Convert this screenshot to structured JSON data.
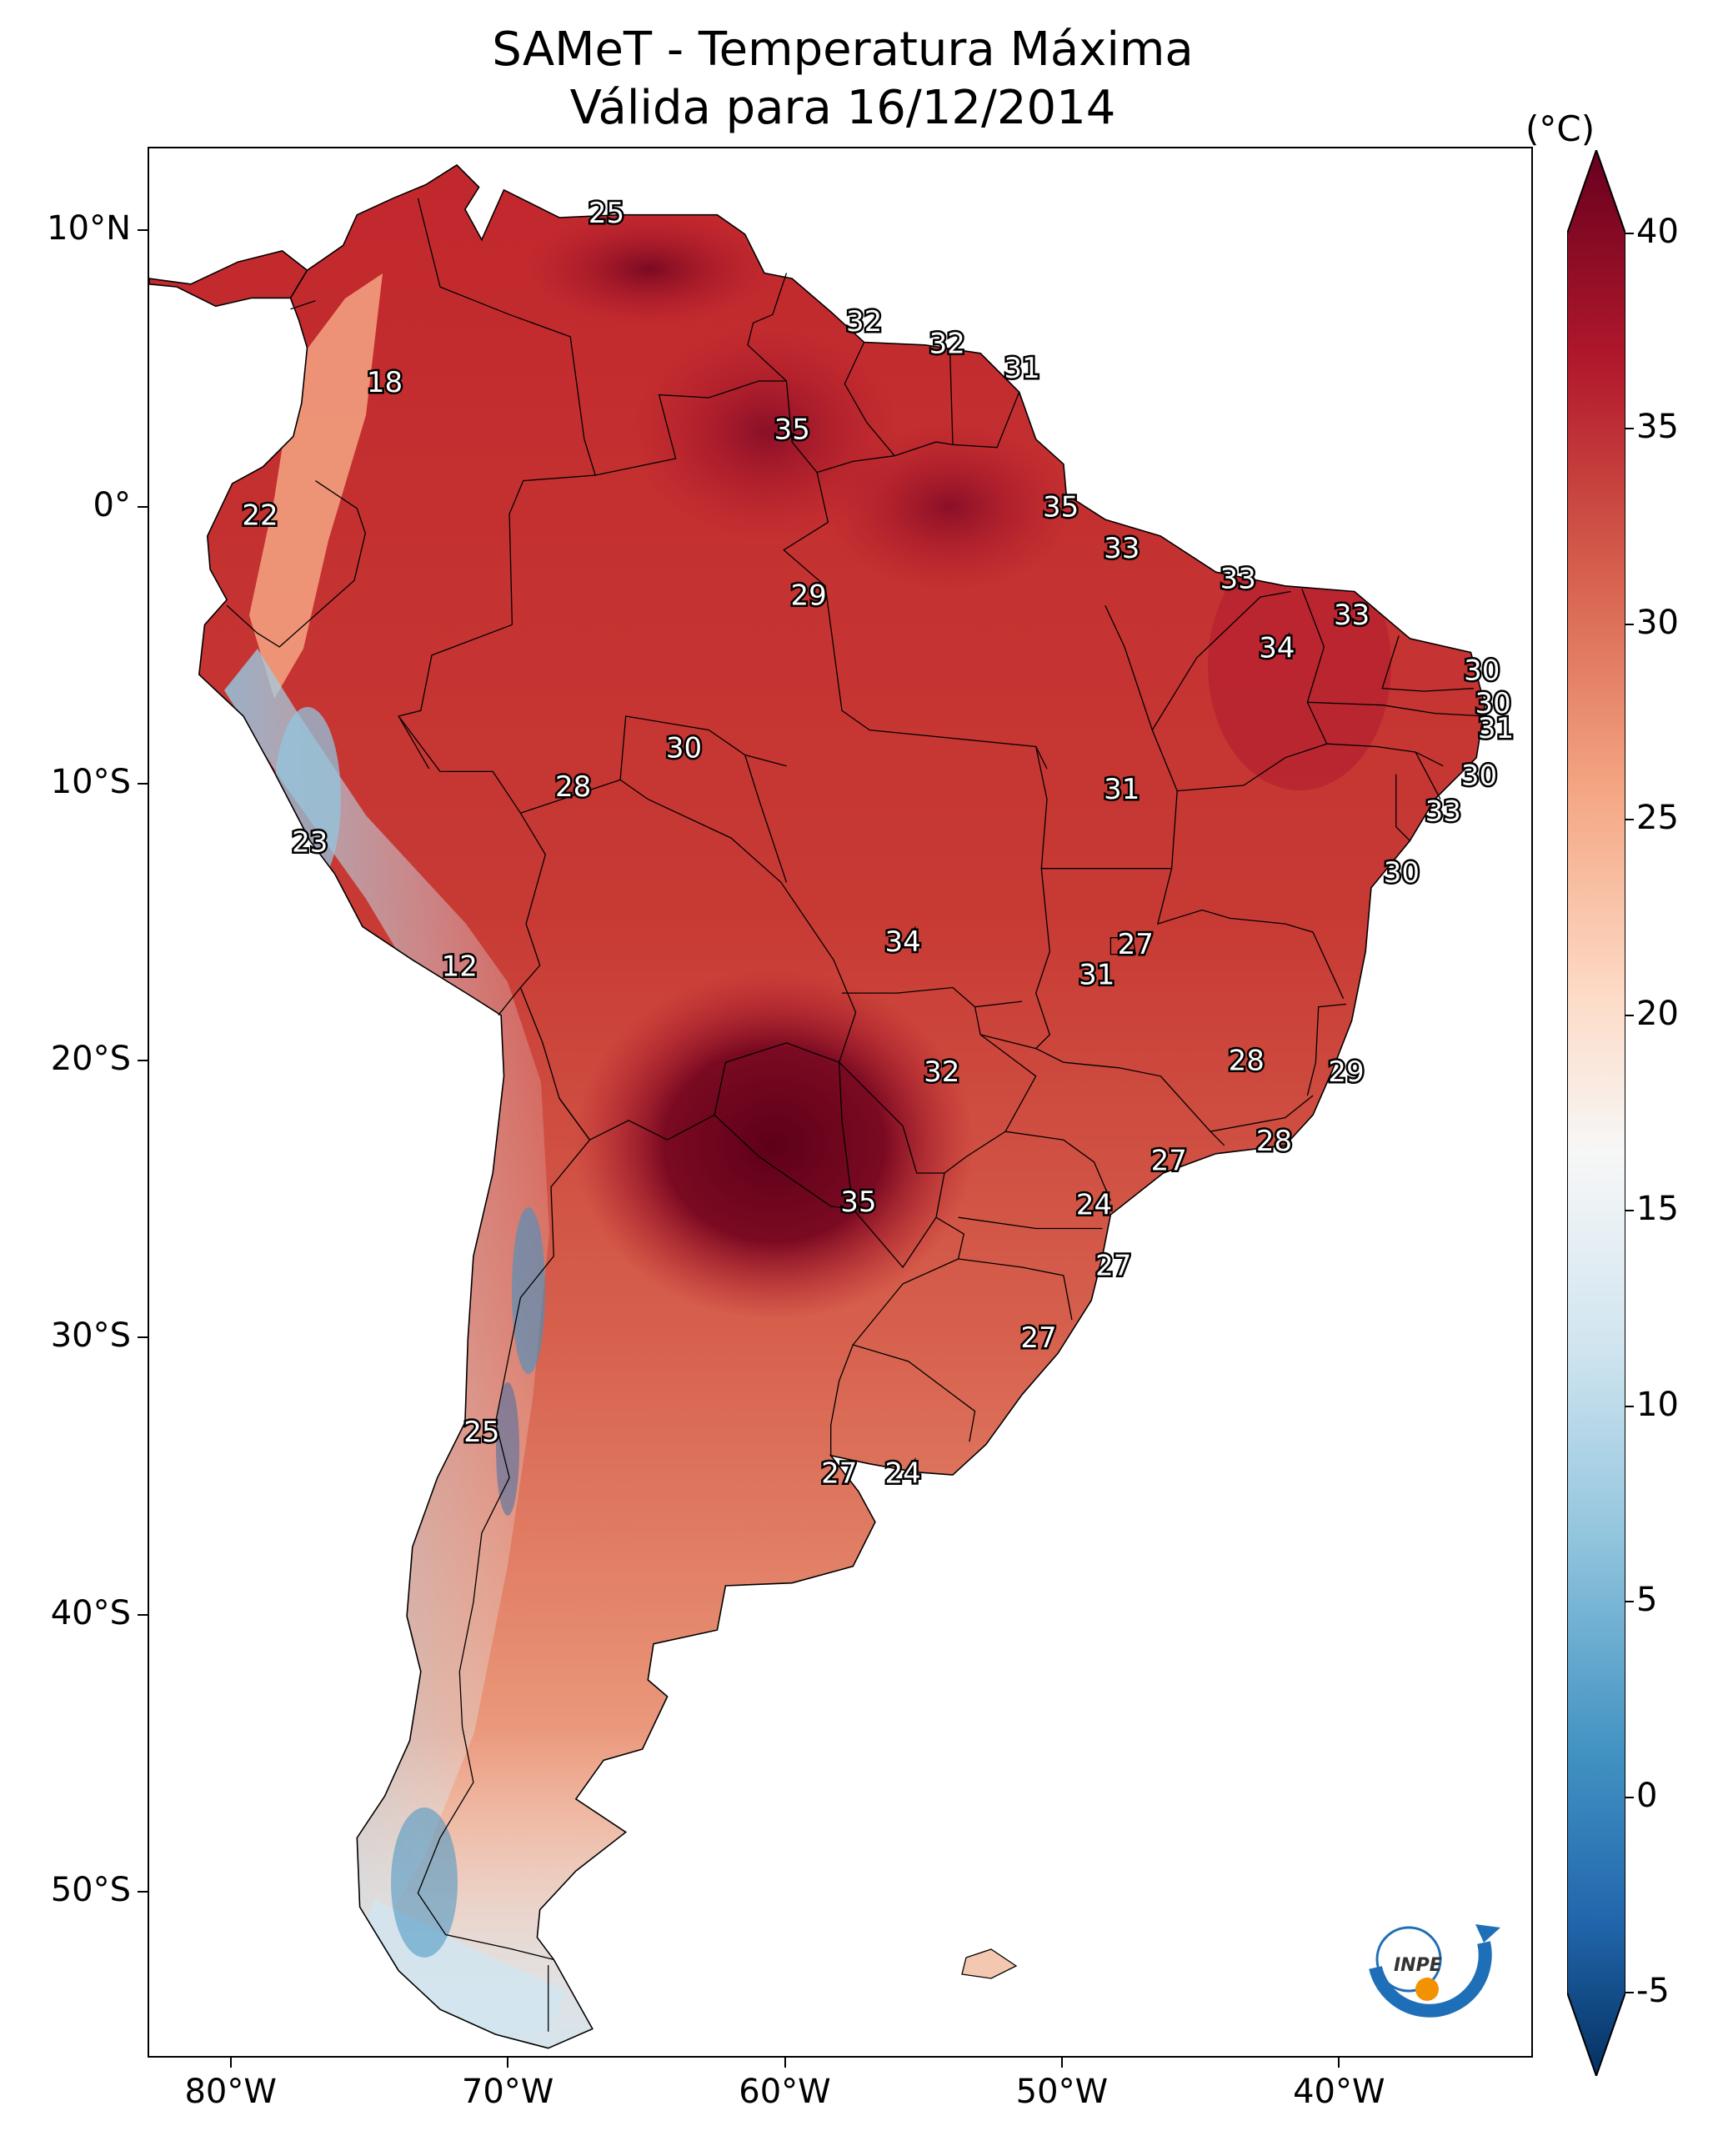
{
  "title": {
    "line1": "SAMeT - Temperatura Máxima",
    "line2": "Válida para 16/12/2014"
  },
  "map": {
    "extent": {
      "lon_min": -83,
      "lon_max": -33,
      "lat_min": -56,
      "lat_max": 13
    },
    "lon_ticks": [
      "80°W",
      "70°W",
      "60°W",
      "50°W",
      "40°W"
    ],
    "lat_ticks": [
      "10°N",
      "0°",
      "10°S",
      "20°S",
      "30°S",
      "40°S",
      "50°S"
    ],
    "colors": {
      "hot_extreme": "#67001f",
      "hot": "#b2182b",
      "warm": "#d6604d",
      "mild": "#f4a582",
      "neutral": "#f7f7f7",
      "cool": "#92c5de",
      "cold": "#2166ac",
      "cold_extreme": "#053061"
    },
    "contour_labels": [
      {
        "text": "25",
        "lon": -66.5,
        "lat": 10.6
      },
      {
        "text": "32",
        "lon": -57.2,
        "lat": 6.7
      },
      {
        "text": "32",
        "lon": -54.2,
        "lat": 5.9
      },
      {
        "text": "31",
        "lon": -51.5,
        "lat": 5.0
      },
      {
        "text": "18",
        "lon": -74.5,
        "lat": 4.5
      },
      {
        "text": "35",
        "lon": -59.8,
        "lat": 2.8
      },
      {
        "text": "22",
        "lon": -79,
        "lat": -0.3
      },
      {
        "text": "35",
        "lon": -50.1,
        "lat": 0.0
      },
      {
        "text": "33",
        "lon": -47.9,
        "lat": -1.5
      },
      {
        "text": "33",
        "lon": -43.7,
        "lat": -2.6
      },
      {
        "text": "29",
        "lon": -59.2,
        "lat": -3.2
      },
      {
        "text": "33",
        "lon": -39.6,
        "lat": -3.9
      },
      {
        "text": "34",
        "lon": -42.3,
        "lat": -5.1
      },
      {
        "text": "30",
        "lon": -34.9,
        "lat": -5.9
      },
      {
        "text": "30",
        "lon": -34.5,
        "lat": -7.1
      },
      {
        "text": "31",
        "lon": -34.4,
        "lat": -8.0
      },
      {
        "text": "30",
        "lon": -63.7,
        "lat": -8.7
      },
      {
        "text": "30",
        "lon": -35.0,
        "lat": -9.7
      },
      {
        "text": "28",
        "lon": -67.7,
        "lat": -10.1
      },
      {
        "text": "31",
        "lon": -47.9,
        "lat": -10.2
      },
      {
        "text": "33",
        "lon": -36.3,
        "lat": -11.0
      },
      {
        "text": "23",
        "lon": -77.2,
        "lat": -12.1
      },
      {
        "text": "30",
        "lon": -37.8,
        "lat": -13.2
      },
      {
        "text": "34",
        "lon": -55.8,
        "lat": -15.7
      },
      {
        "text": "27",
        "lon": -47.4,
        "lat": -15.8
      },
      {
        "text": "31",
        "lon": -48.8,
        "lat": -16.9
      },
      {
        "text": "12",
        "lon": -71.8,
        "lat": -16.6
      },
      {
        "text": "28",
        "lon": -43.4,
        "lat": -20.0
      },
      {
        "text": "29",
        "lon": -39.8,
        "lat": -20.4
      },
      {
        "text": "32",
        "lon": -54.4,
        "lat": -20.4
      },
      {
        "text": "28",
        "lon": -42.4,
        "lat": -22.9
      },
      {
        "text": "27",
        "lon": -46.2,
        "lat": -23.6
      },
      {
        "text": "35",
        "lon": -57.4,
        "lat": -25.1
      },
      {
        "text": "24",
        "lon": -48.9,
        "lat": -25.2
      },
      {
        "text": "27",
        "lon": -48.2,
        "lat": -27.4
      },
      {
        "text": "27",
        "lon": -50.9,
        "lat": -30.0
      },
      {
        "text": "25",
        "lon": -71.0,
        "lat": -33.4
      },
      {
        "text": "27",
        "lon": -58.1,
        "lat": -34.9
      },
      {
        "text": "24",
        "lon": -55.8,
        "lat": -34.9
      }
    ]
  },
  "colorbar": {
    "unit": "(°C)",
    "min": -5,
    "max": 40,
    "extend": "both",
    "ticks": [
      "40",
      "35",
      "30",
      "25",
      "20",
      "15",
      "10",
      "5",
      "0",
      "-5"
    ]
  },
  "logo": {
    "text": "INPE"
  }
}
